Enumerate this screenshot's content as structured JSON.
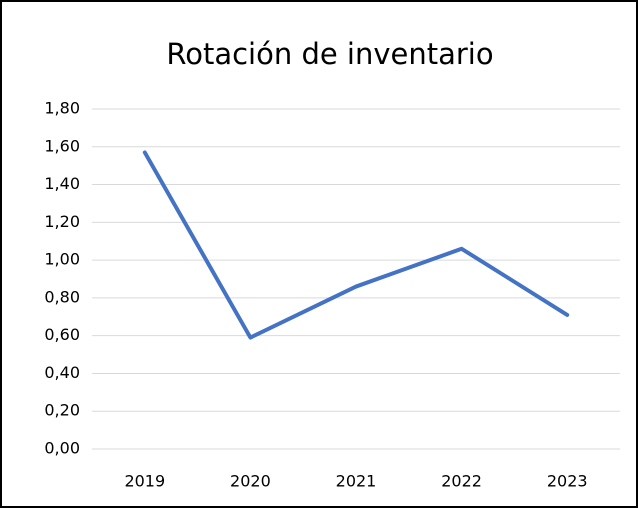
{
  "chart_data": {
    "type": "line",
    "title": "Rotación de inventario",
    "categories": [
      "2019",
      "2020",
      "2021",
      "2022",
      "2023"
    ],
    "series": [
      {
        "name": "Rotación de inventario",
        "color": "#4472c4",
        "values": [
          1.57,
          0.59,
          0.86,
          1.06,
          0.71
        ]
      }
    ],
    "ylim": [
      0,
      1.8
    ],
    "yticks": [
      {
        "value": 0,
        "label": "0,00"
      },
      {
        "value": 0.2,
        "label": "0,20"
      },
      {
        "value": 0.4,
        "label": "0,40"
      },
      {
        "value": 0.6,
        "label": "0,60"
      },
      {
        "value": 0.8,
        "label": "0,80"
      },
      {
        "value": 1.0,
        "label": "1,00"
      },
      {
        "value": 1.2,
        "label": "1,20"
      },
      {
        "value": 1.4,
        "label": "1,40"
      },
      {
        "value": 1.6,
        "label": "1,60"
      },
      {
        "value": 1.8,
        "label": "1,80"
      }
    ],
    "grid": true
  }
}
